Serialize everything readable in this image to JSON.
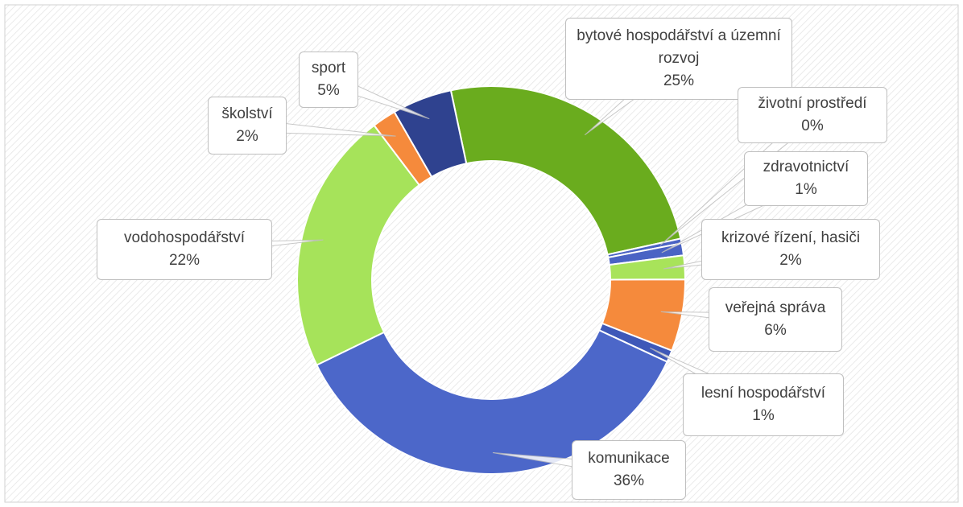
{
  "chart_data": {
    "type": "donut",
    "categories": [
      "bytové hospodářství a územní rozvoj",
      "životní prostředí",
      "zdravotnictví",
      "krizové řízení, hasiči",
      "veřejná správa",
      "lesní hospodářství",
      "komunikace",
      "vodohospodářství",
      "školství",
      "sport"
    ],
    "values": [
      25,
      0.4,
      1,
      2,
      6,
      1,
      36,
      22,
      2,
      5
    ],
    "value_labels": [
      "25%",
      "0%",
      "1%",
      "2%",
      "6%",
      "1%",
      "36%",
      "22%",
      "2%",
      "5%"
    ],
    "colors": [
      "#6aac1e",
      "#4a63c4",
      "#4a63c4",
      "#a8e35a",
      "#f58a3c",
      "#3e58b8",
      "#4c67c9",
      "#a6e35a",
      "#f58a3c",
      "#2f428f"
    ]
  }
}
